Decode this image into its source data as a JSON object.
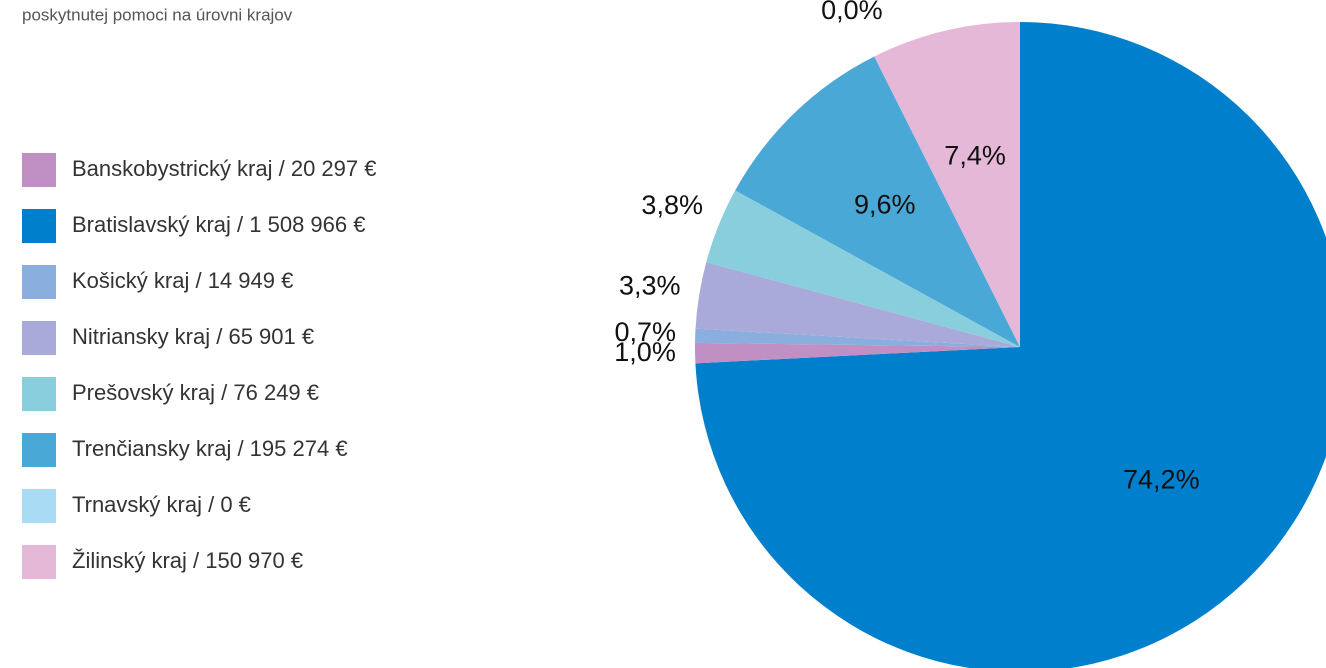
{
  "chart_data": {
    "type": "pie",
    "subtitle": "poskytnutej pomoci na úrovni krajov",
    "categories": [
      "Banskobystrický kraj / 20 297 €",
      "Bratislavský kraj / 1 508 966 €",
      "Košický kraj / 14 949 €",
      "Nitriansky kraj / 65 901 €",
      "Prešovský kraj / 76 249 €",
      "Trenčiansky kraj / 195 274 €",
      "Trnavský kraj / 0 €",
      "Žilinský kraj / 150 970 €"
    ],
    "values": [
      1.0,
      74.2,
      0.7,
      3.3,
      3.8,
      9.6,
      0.0,
      7.4
    ],
    "value_labels": [
      "1,0%",
      "74,2%",
      "0,7%",
      "3,3%",
      "3,8%",
      "9,6%",
      "0,0%",
      "7,4%"
    ],
    "colors": [
      "#c08fc4",
      "#0080cc",
      "#8aaede",
      "#a9aad9",
      "#88cedd",
      "#4aa8d6",
      "#a8dcf5",
      "#e5b8d8"
    ],
    "legend": "left"
  }
}
